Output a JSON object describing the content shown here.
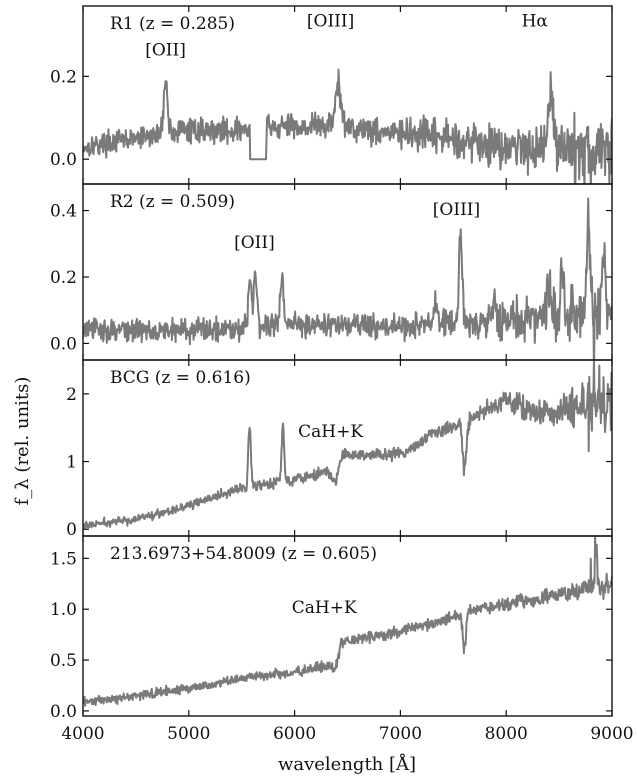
{
  "chart_data": {
    "type": "line",
    "xlabel": "wavelength [Å]",
    "ylabel": "f_λ (rel. units)",
    "x_range": [
      4000,
      9000
    ],
    "x_ticks": [
      4000,
      5000,
      6000,
      7000,
      8000,
      9000
    ],
    "panels": [
      {
        "id": "R1",
        "label": "R1 (z = 0.285)",
        "ylim": [
          -0.06,
          0.37
        ],
        "y_ticks": [
          {
            "v": 0.0,
            "label": "0.0"
          },
          {
            "v": 0.2,
            "label": "0.2"
          }
        ],
        "annotations": [
          {
            "text": "[OII]",
            "x": 4780,
            "y": 0.265
          },
          {
            "text": "[OIII]",
            "x": 6340,
            "y": 0.335
          },
          {
            "text": "Hα",
            "x": 8270,
            "y": 0.335
          }
        ],
        "continuum": [
          [
            4000,
            0.03
          ],
          [
            4500,
            0.05
          ],
          [
            5000,
            0.07
          ],
          [
            5500,
            0.07
          ],
          [
            6000,
            0.08
          ],
          [
            6500,
            0.08
          ],
          [
            7000,
            0.06
          ],
          [
            7500,
            0.05
          ],
          [
            8000,
            0.03
          ],
          [
            8500,
            0.03
          ],
          [
            9000,
            0.02
          ]
        ],
        "lines": [
          [
            4780,
            0.12,
            20
          ],
          [
            6410,
            0.1,
            25
          ],
          [
            8420,
            0.16,
            20
          ]
        ],
        "gap": [
          5580,
          5730
        ],
        "noise": [
          [
            4000,
            0.018
          ],
          [
            7000,
            0.025
          ],
          [
            8000,
            0.035
          ],
          [
            9000,
            0.055
          ]
        ],
        "spikes": [
          [
            8650,
            -0.12
          ],
          [
            8740,
            -0.12
          ],
          [
            8800,
            -0.1
          ],
          [
            8900,
            -0.12
          ]
        ]
      },
      {
        "id": "R2",
        "label": "R2 (z = 0.509)",
        "ylim": [
          -0.05,
          0.48
        ],
        "y_ticks": [
          {
            "v": 0.0,
            "label": "0.0"
          },
          {
            "v": 0.2,
            "label": "0.2"
          },
          {
            "v": 0.4,
            "label": "0.4"
          }
        ],
        "annotations": [
          {
            "text": "[OII]",
            "x": 5620,
            "y": 0.305
          },
          {
            "text": "[OIII]",
            "x": 7530,
            "y": 0.405
          }
        ],
        "continuum": [
          [
            4000,
            0.04
          ],
          [
            5000,
            0.04
          ],
          [
            5500,
            0.05
          ],
          [
            6000,
            0.06
          ],
          [
            7000,
            0.05
          ],
          [
            7500,
            0.06
          ],
          [
            8000,
            0.07
          ],
          [
            8500,
            0.08
          ],
          [
            9000,
            0.1
          ]
        ],
        "lines": [
          [
            5580,
            0.14,
            15
          ],
          [
            5630,
            0.17,
            15
          ],
          [
            5880,
            0.14,
            15
          ],
          [
            7330,
            0.07,
            15
          ],
          [
            7570,
            0.26,
            15
          ],
          [
            7890,
            0.08,
            15
          ],
          [
            8400,
            0.12,
            15
          ],
          [
            8530,
            0.13,
            15
          ],
          [
            8780,
            0.28,
            15
          ],
          [
            8920,
            0.16,
            15
          ]
        ],
        "gap": null,
        "noise": [
          [
            4000,
            0.025
          ],
          [
            7000,
            0.025
          ],
          [
            8000,
            0.04
          ],
          [
            9000,
            0.07
          ]
        ],
        "spikes": [
          [
            8830,
            -0.18
          ],
          [
            8860,
            -0.16
          ]
        ]
      },
      {
        "id": "BCG",
        "label": "BCG (z = 0.616)",
        "ylim": [
          -0.1,
          2.5
        ],
        "y_ticks": [
          {
            "v": 0,
            "label": "0"
          },
          {
            "v": 1,
            "label": "1"
          },
          {
            "v": 2,
            "label": "2"
          }
        ],
        "annotations": [
          {
            "text": "CaH+K",
            "x": 6340,
            "y": 1.45
          }
        ],
        "continuum": [
          [
            4000,
            0.05
          ],
          [
            4500,
            0.15
          ],
          [
            5000,
            0.35
          ],
          [
            5500,
            0.6
          ],
          [
            6000,
            0.75
          ],
          [
            6300,
            0.85
          ],
          [
            6390,
            0.7
          ],
          [
            6450,
            1.1
          ],
          [
            7000,
            1.1
          ],
          [
            7300,
            1.4
          ],
          [
            7600,
            1.6
          ],
          [
            8000,
            1.9
          ],
          [
            8300,
            1.7
          ],
          [
            8600,
            1.8
          ],
          [
            9000,
            1.85
          ]
        ],
        "lines": [
          [
            5575,
            0.95,
            12
          ],
          [
            5890,
            0.8,
            12
          ]
        ],
        "absorptions": [
          [
            7605,
            0.75,
            18
          ]
        ],
        "gap": null,
        "noise": [
          [
            4000,
            0.04
          ],
          [
            7500,
            0.07
          ],
          [
            8400,
            0.14
          ],
          [
            9000,
            0.3
          ]
        ],
        "spikes": [
          [
            8780,
            -0.8
          ],
          [
            8830,
            0.5
          ],
          [
            8880,
            0.45
          ],
          [
            8920,
            0.4
          ]
        ]
      },
      {
        "id": "213",
        "label": "213.6973+54.8009 (z = 0.605)",
        "ylim": [
          -0.05,
          1.72
        ],
        "y_ticks": [
          {
            "v": 0.0,
            "label": "0.0"
          },
          {
            "v": 0.5,
            "label": "0.5"
          },
          {
            "v": 1.0,
            "label": "1.0"
          },
          {
            "v": 1.5,
            "label": "1.5"
          }
        ],
        "annotations": [
          {
            "text": "CaH+K",
            "x": 6280,
            "y": 1.02
          }
        ],
        "continuum": [
          [
            4000,
            0.08
          ],
          [
            4500,
            0.15
          ],
          [
            5000,
            0.22
          ],
          [
            5500,
            0.32
          ],
          [
            6000,
            0.38
          ],
          [
            6350,
            0.45
          ],
          [
            6390,
            0.4
          ],
          [
            6440,
            0.68
          ],
          [
            7000,
            0.78
          ],
          [
            7500,
            0.92
          ],
          [
            7600,
            0.98
          ],
          [
            8000,
            1.05
          ],
          [
            8500,
            1.15
          ],
          [
            9000,
            1.22
          ]
        ],
        "lines": [],
        "absorptions": [
          [
            7605,
            0.4,
            15
          ],
          [
            8850,
            -0.4,
            10
          ]
        ],
        "gap": null,
        "noise": [
          [
            4000,
            0.03
          ],
          [
            7500,
            0.04
          ],
          [
            8400,
            0.05
          ],
          [
            9000,
            0.08
          ]
        ],
        "spikes": [
          [
            8800,
            0.3
          ],
          [
            8840,
            0.25
          ]
        ]
      }
    ]
  }
}
